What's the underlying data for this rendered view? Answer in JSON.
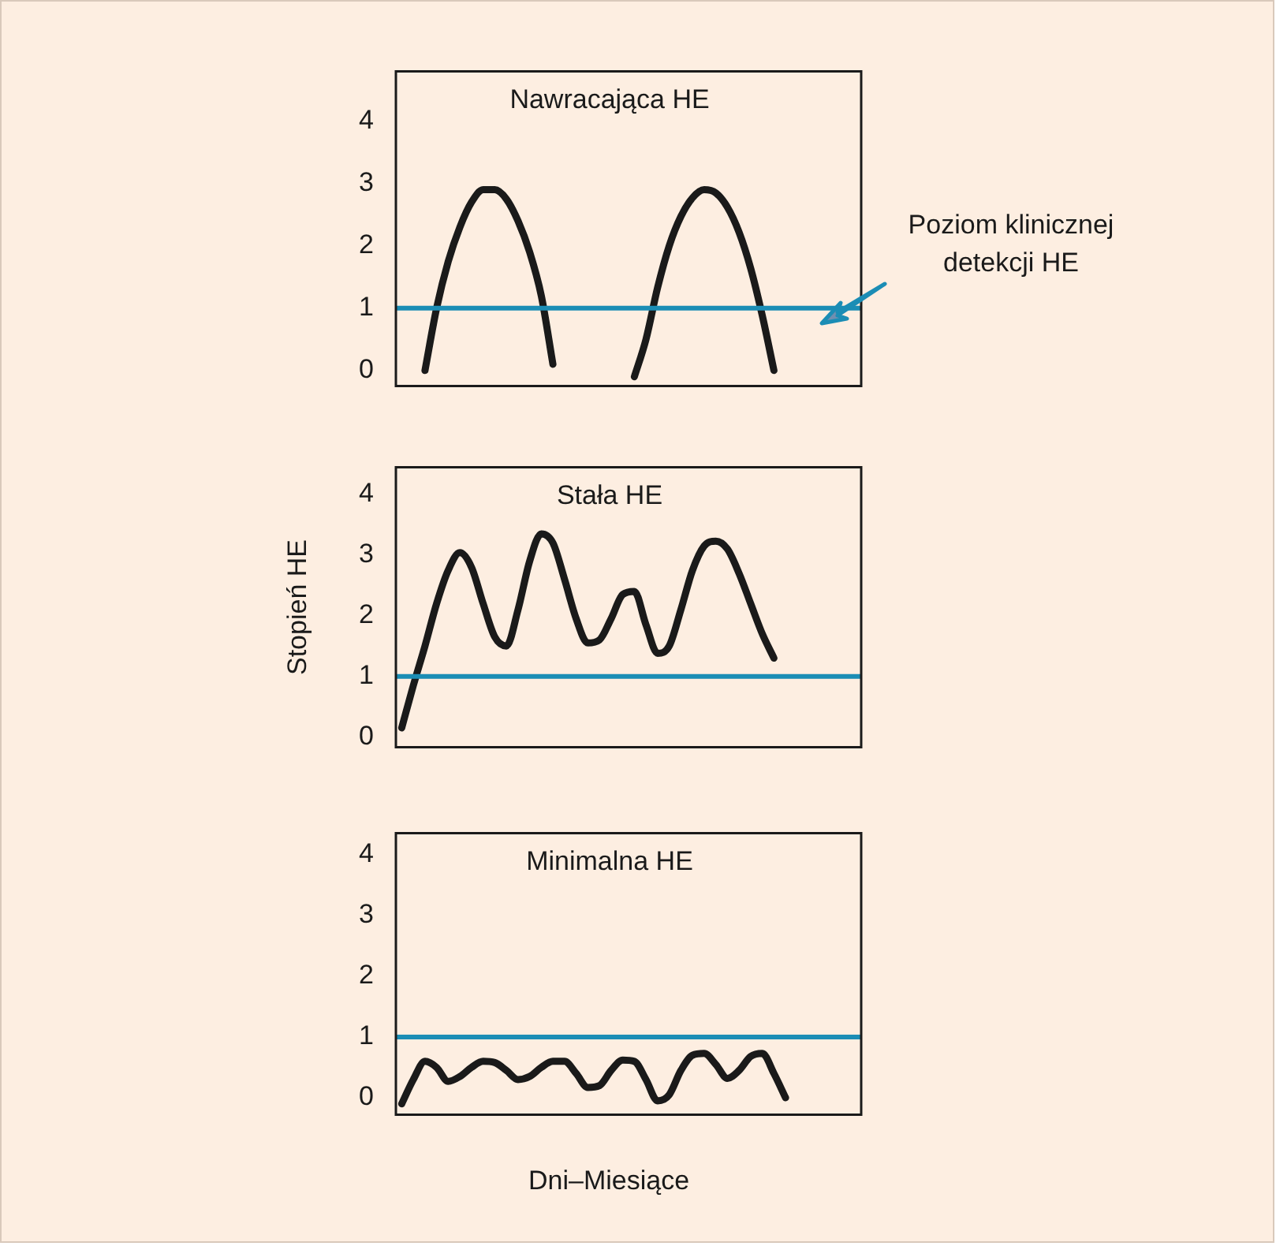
{
  "chart_data": [
    {
      "type": "line",
      "title": "Nawracająca HE",
      "categories": [
        null,
        null,
        null,
        null,
        null,
        null,
        null,
        null,
        null,
        null,
        null,
        null,
        null,
        null,
        null,
        null,
        null,
        null,
        null,
        null,
        null,
        null,
        null,
        null,
        null,
        null,
        null,
        null,
        null,
        null,
        null,
        null,
        null,
        null,
        null,
        null,
        null,
        null,
        null,
        null
      ],
      "series": [
        {
          "color": "#1a1a1a",
          "values": [
            null,
            null,
            0,
            1.0,
            1.75,
            2.3,
            2.7,
            2.9,
            2.9,
            2.75,
            2.4,
            1.9,
            1.2,
            0.1,
            null,
            null,
            null,
            null,
            null,
            null,
            -0.1,
            0.5,
            1.33,
            2.0,
            2.47,
            2.77,
            2.9,
            2.85,
            2.62,
            2.22,
            1.64,
            0.88,
            0,
            null,
            null,
            null,
            null,
            null,
            null,
            null
          ]
        }
      ],
      "ylim": [
        -0.25,
        4.8
      ],
      "yticks": [
        0,
        1,
        2,
        3,
        4
      ],
      "tick_labels": "y",
      "grid": false,
      "legend": false,
      "marker": "none",
      "line_style": "solid",
      "ref_lines": [
        {
          "axis": "y",
          "value": 1,
          "label": "Poziom klinicznej detekcji HE",
          "color": "#1b8db5"
        }
      ]
    },
    {
      "type": "line",
      "title": "Stała HE",
      "ylabel": "Stopień HE",
      "categories": [
        null,
        null,
        null,
        null,
        null,
        null,
        null,
        null,
        null,
        null,
        null,
        null,
        null,
        null,
        null,
        null,
        null,
        null,
        null,
        null,
        null,
        null,
        null,
        null,
        null,
        null,
        null,
        null,
        null,
        null,
        null,
        null,
        null,
        null,
        null,
        null,
        null,
        null,
        null,
        null
      ],
      "series": [
        {
          "color": "#1a1a1a",
          "values": [
            0.15,
            0.85,
            1.5,
            2.2,
            2.75,
            3.04,
            2.8,
            2.2,
            1.65,
            1.5,
            2.1,
            2.9,
            3.35,
            3.2,
            2.6,
            1.95,
            1.55,
            1.6,
            1.95,
            2.35,
            2.4,
            1.85,
            1.38,
            1.5,
            2.1,
            2.75,
            3.15,
            3.23,
            3.1,
            2.7,
            2.2,
            1.7,
            1.3,
            null,
            null,
            null,
            null,
            null,
            null,
            null
          ]
        }
      ],
      "ylim": [
        -0.17,
        4.45
      ],
      "yticks": [
        0,
        1,
        2,
        3,
        4
      ],
      "tick_labels": "y",
      "grid": false,
      "legend": false,
      "marker": "none",
      "line_style": "solid",
      "ref_lines": [
        {
          "axis": "y",
          "value": 1,
          "color": "#1b8db5"
        }
      ]
    },
    {
      "type": "line",
      "title": "Minimalna HE",
      "xlabel": "Dni–Miesiące",
      "categories": [
        null,
        null,
        null,
        null,
        null,
        null,
        null,
        null,
        null,
        null,
        null,
        null,
        null,
        null,
        null,
        null,
        null,
        null,
        null,
        null,
        null,
        null,
        null,
        null,
        null,
        null,
        null,
        null,
        null,
        null,
        null,
        null,
        null,
        null,
        null,
        null,
        null,
        null,
        null,
        null
      ],
      "series": [
        {
          "color": "#1a1a1a",
          "values": [
            -0.1,
            0.3,
            0.6,
            0.5,
            0.27,
            0.35,
            0.5,
            0.6,
            0.58,
            0.45,
            0.3,
            0.35,
            0.5,
            0.6,
            0.6,
            0.4,
            0.17,
            0.2,
            0.45,
            0.62,
            0.6,
            0.3,
            -0.05,
            0.05,
            0.45,
            0.7,
            0.73,
            0.55,
            0.32,
            0.45,
            0.68,
            0.73,
            0.4,
            0,
            null,
            null,
            null,
            null,
            null,
            null
          ]
        }
      ],
      "ylim": [
        -0.28,
        4.36
      ],
      "yticks": [
        0,
        1,
        2,
        3,
        4
      ],
      "tick_labels": "y",
      "grid": false,
      "legend": false,
      "marker": "none",
      "line_style": "solid",
      "ref_lines": [
        {
          "axis": "y",
          "value": 1,
          "color": "#1b8db5"
        }
      ]
    }
  ]
}
